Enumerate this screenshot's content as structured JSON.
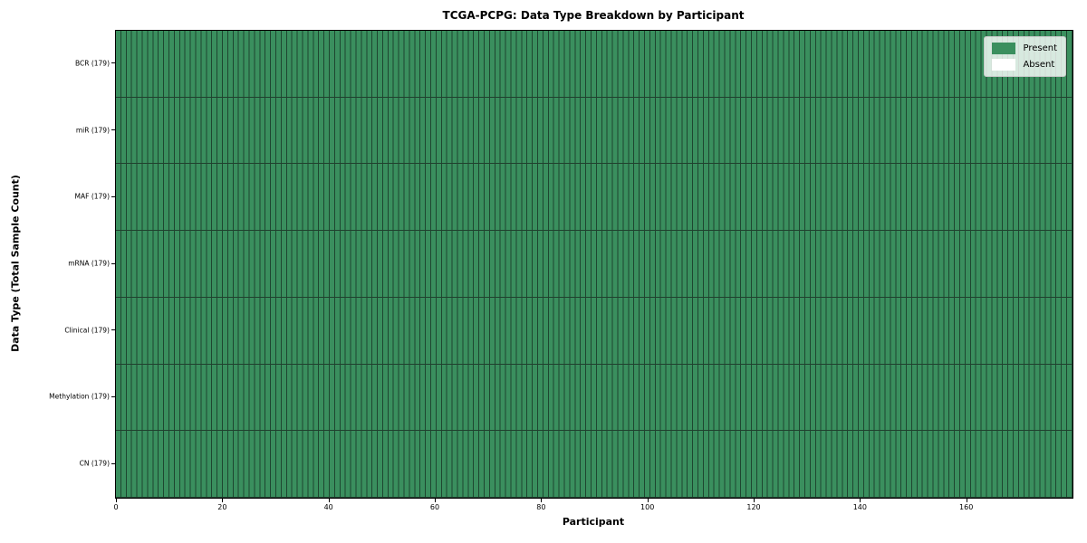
{
  "title": "TCGA-PCPG: Data Type Breakdown by Participant",
  "axes": {
    "x_label": "Participant",
    "y_label": "Data Type (Total Sample Count)",
    "x_tick_labels": [
      "0",
      "20",
      "40",
      "60",
      "80",
      "100",
      "120",
      "140",
      "160"
    ]
  },
  "legend": {
    "items": [
      {
        "label": "Present",
        "color": "#3a8f5e"
      },
      {
        "label": "Absent",
        "color": "#ffffff"
      }
    ]
  },
  "colors": {
    "present": "#3a8f5e",
    "absent": "#ffffff",
    "grid_line": "#1e4630",
    "row_separator": "#20402e",
    "axis": "#000000",
    "legend_bg": "rgba(255,255,255,0.8)"
  },
  "chart_data": {
    "type": "heatmap",
    "title": "TCGA-PCPG: Data Type Breakdown by Participant",
    "xlabel": "Participant",
    "ylabel": "Data Type (Total Sample Count)",
    "x_range": [
      0,
      179
    ],
    "x_tick_values": [
      0,
      20,
      40,
      60,
      80,
      100,
      120,
      140,
      160
    ],
    "n_participants": 179,
    "row_labels_top_to_bottom": [
      "BCR (179)",
      "miR (179)",
      "MAF (179)",
      "mRNA (179)",
      "Clinical (179)",
      "Methylation (179)",
      "CN (179)"
    ],
    "series": [
      {
        "name": "BCR",
        "total_sample_count": 179,
        "present": 179,
        "absent": 0
      },
      {
        "name": "miR",
        "total_sample_count": 179,
        "present": 179,
        "absent": 0
      },
      {
        "name": "MAF",
        "total_sample_count": 179,
        "present": 179,
        "absent": 0
      },
      {
        "name": "mRNA",
        "total_sample_count": 179,
        "present": 179,
        "absent": 0
      },
      {
        "name": "Clinical",
        "total_sample_count": 179,
        "present": 179,
        "absent": 0
      },
      {
        "name": "Methylation",
        "total_sample_count": 179,
        "present": 179,
        "absent": 0
      },
      {
        "name": "CN",
        "total_sample_count": 179,
        "present": 179,
        "absent": 0
      }
    ],
    "all_cells_present": true,
    "cell_encoding": {
      "1": "Present",
      "0": "Absent"
    },
    "legend_entries": [
      "Present",
      "Absent"
    ],
    "legend_position": "upper right",
    "grid": "vertical cell edge per participant, horizontal edge per data-type row"
  }
}
